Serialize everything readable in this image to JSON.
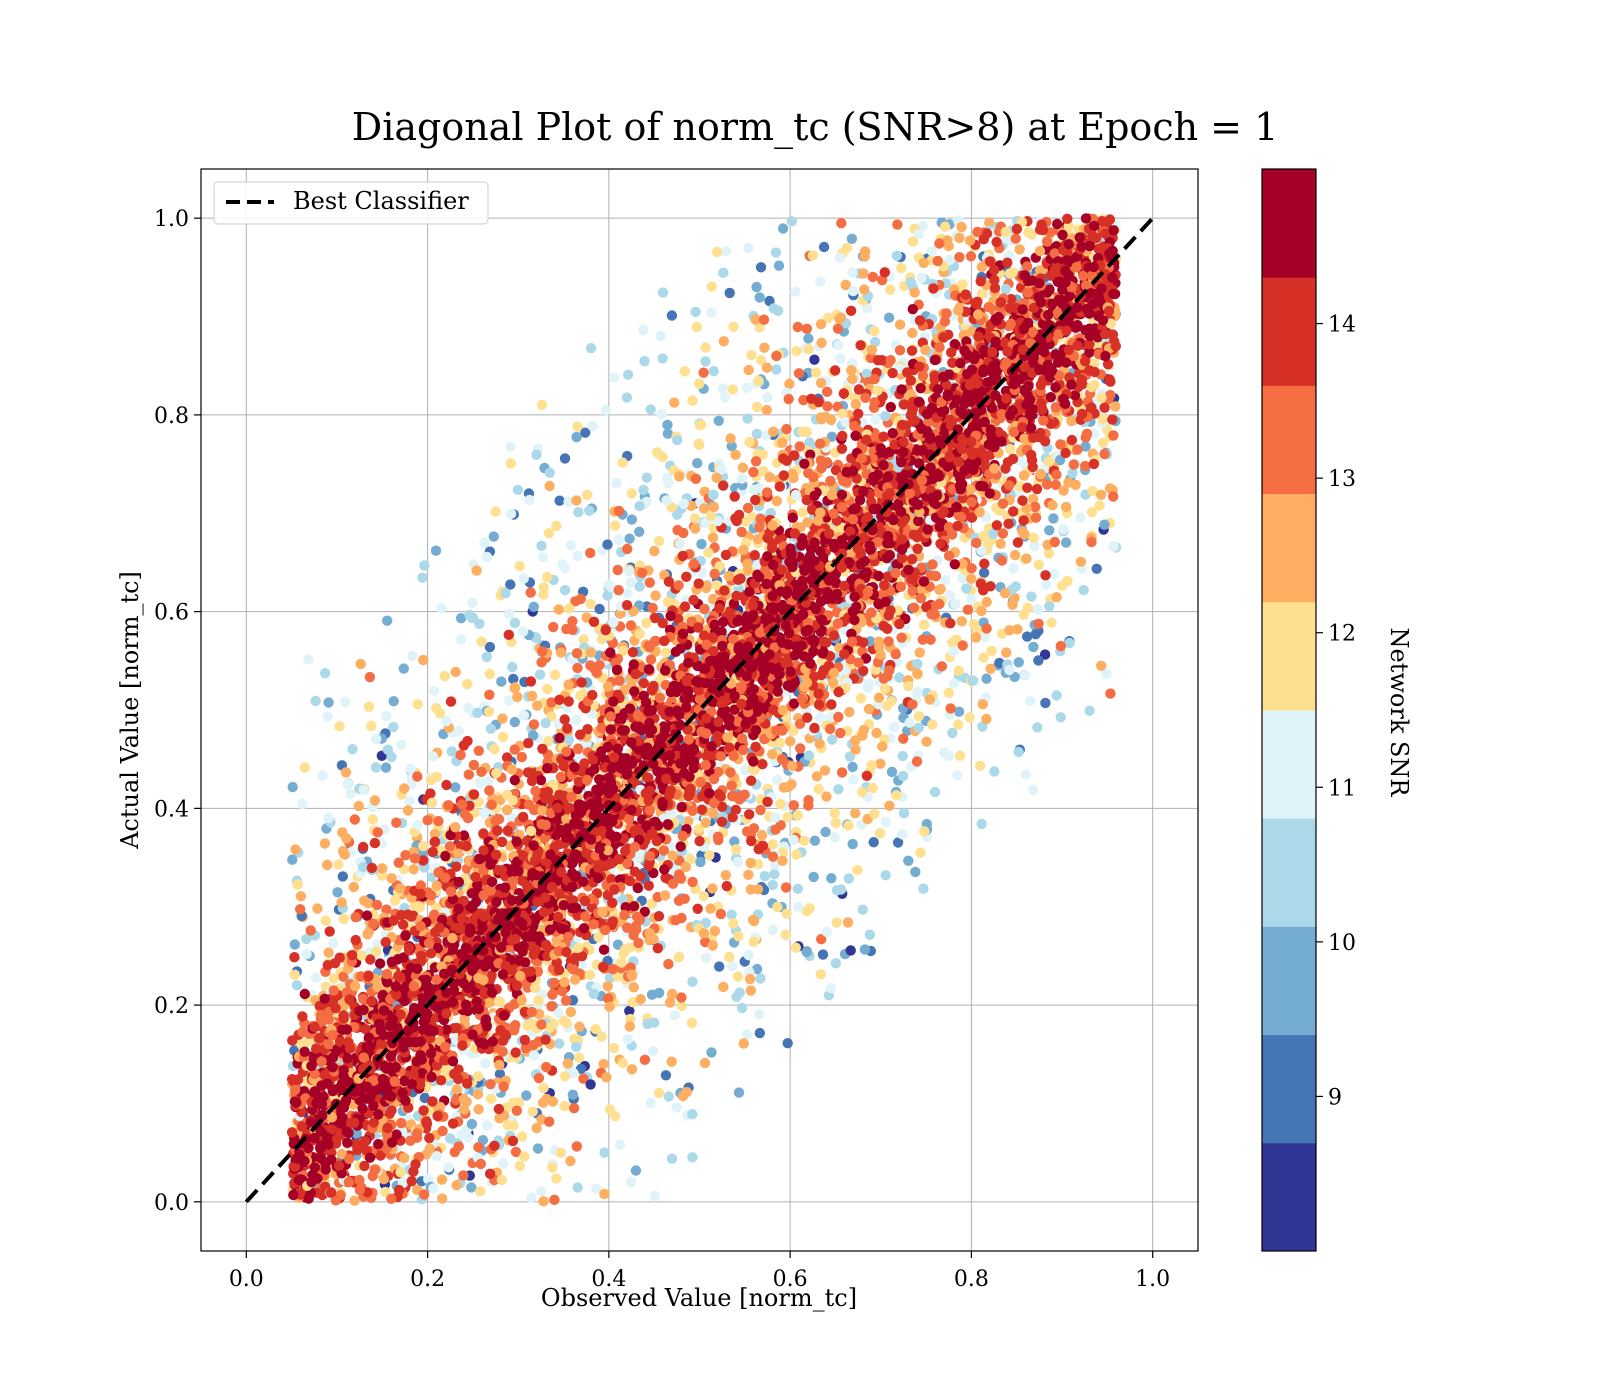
{
  "chart_data": {
    "type": "scatter",
    "title": "Diagonal Plot of norm_tc (SNR>8) at Epoch = 1",
    "xlabel": "Observed Value [norm_tc]",
    "ylabel": "Actual Value [norm_tc]",
    "xlim": [
      -0.05,
      1.05
    ],
    "ylim": [
      -0.05,
      1.05
    ],
    "x_ticks": [
      "0.0",
      "0.2",
      "0.4",
      "0.6",
      "0.8",
      "1.0"
    ],
    "y_ticks": [
      "0.0",
      "0.2",
      "0.4",
      "0.6",
      "0.8",
      "1.0"
    ],
    "grid": true,
    "legend": {
      "placement": "upper-left",
      "entries": [
        "Best Classifier"
      ]
    },
    "reference_line": {
      "name": "Best Classifier",
      "style": "dashed",
      "color": "#000000",
      "points": [
        [
          0.0,
          0.0
        ],
        [
          1.0,
          1.0
        ]
      ]
    },
    "point_density": {
      "description_band": "dense band along y = x with half-width about 0.18, spreading wider near the center",
      "approx_point_count": 40000
    },
    "colorbar": {
      "label": "Network SNR",
      "range": [
        8,
        15
      ],
      "ticks": [
        "9",
        "10",
        "11",
        "12",
        "13",
        "14"
      ],
      "tick_values": [
        9,
        10,
        11,
        12,
        13,
        14
      ],
      "levels": [
        "#313695",
        "#4575b4",
        "#74add1",
        "#abd9e9",
        "#e0f3f8",
        "#fee090",
        "#fdae61",
        "#f46d43",
        "#d73027",
        "#a50026"
      ]
    },
    "color_note": "high-SNR (dark red) points cluster tightly on the diagonal; low-SNR (blue) points scatter far from it"
  }
}
